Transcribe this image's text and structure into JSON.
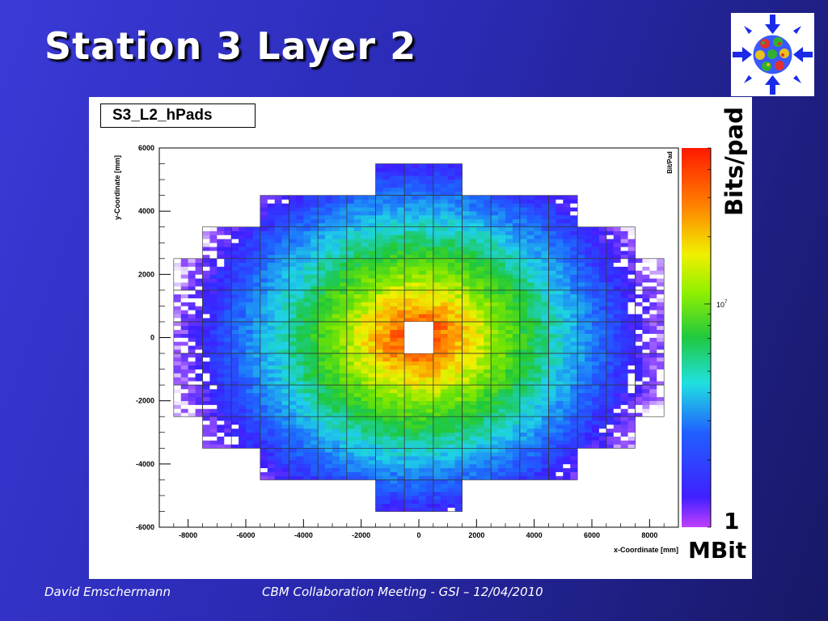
{
  "slide": {
    "title": "Station 3 Layer 2",
    "footer_author": "David Emschermann",
    "footer_event": "CBM Collaboration Meeting - GSI – 12/04/2010"
  },
  "annotations": {
    "bits_per_pad": "Bits/pad",
    "scale_min_number": "1",
    "scale_min_unit": "MBit"
  },
  "colors": {
    "background": "#2a2ab4",
    "logo_arrow": "#1a2ae8",
    "frame": "#ffffff"
  },
  "chart_data": {
    "type": "heatmap",
    "title": "S3_L2_hPads",
    "xlabel": "x-Coordinate [mm]",
    "ylabel": "y-Coordinate [mm]",
    "zlabel": "Bit/Pad",
    "xlim": [
      -9000,
      9000
    ],
    "ylim": [
      -6000,
      6000
    ],
    "xticks": [
      "-8000",
      "-6000",
      "-4000",
      "-2000",
      "0",
      "2000",
      "4000",
      "6000",
      "8000"
    ],
    "xtick_values": [
      -8000,
      -6000,
      -4000,
      -2000,
      0,
      2000,
      4000,
      6000,
      8000
    ],
    "yticks": [
      "-6000",
      "-4000",
      "-2000",
      "0",
      "2000",
      "4000",
      "6000"
    ],
    "ytick_values": [
      -6000,
      -4000,
      -2000,
      0,
      2000,
      4000,
      6000
    ],
    "zscale": "log",
    "z_tick_base": "10",
    "z_tick_exp": "7",
    "z_tick_value": 10000000,
    "z_min": 1000000,
    "z_max": 50000000,
    "module_size_mm": 1000,
    "center_hole": {
      "x": [
        -500,
        500
      ],
      "y": [
        -500,
        500
      ]
    },
    "module_rows": [
      {
        "y": [
          4500,
          5500
        ],
        "x": [
          -1500,
          1500
        ]
      },
      {
        "y": [
          3500,
          4500
        ],
        "x": [
          -5500,
          5500
        ]
      },
      {
        "y": [
          2500,
          3500
        ],
        "x": [
          -7500,
          7500
        ]
      },
      {
        "y": [
          1500,
          2500
        ],
        "x": [
          -8500,
          8500
        ]
      },
      {
        "y": [
          500,
          1500
        ],
        "x": [
          -8500,
          8500
        ]
      },
      {
        "y": [
          -500,
          500
        ],
        "x": [
          -8500,
          8500
        ]
      },
      {
        "y": [
          -1500,
          -500
        ],
        "x": [
          -8500,
          8500
        ]
      },
      {
        "y": [
          -2500,
          -1500
        ],
        "x": [
          -8500,
          8500
        ]
      },
      {
        "y": [
          -3500,
          -2500
        ],
        "x": [
          -7500,
          7500
        ]
      },
      {
        "y": [
          -4500,
          -3500
        ],
        "x": [
          -5500,
          5500
        ]
      },
      {
        "y": [
          -5500,
          -4500
        ],
        "x": [
          -1500,
          1500
        ]
      }
    ],
    "intensity_profile": "radial falloff: red near center, green at mid radius, blue at outer edges",
    "grid": false,
    "legend": "colorbar right"
  }
}
